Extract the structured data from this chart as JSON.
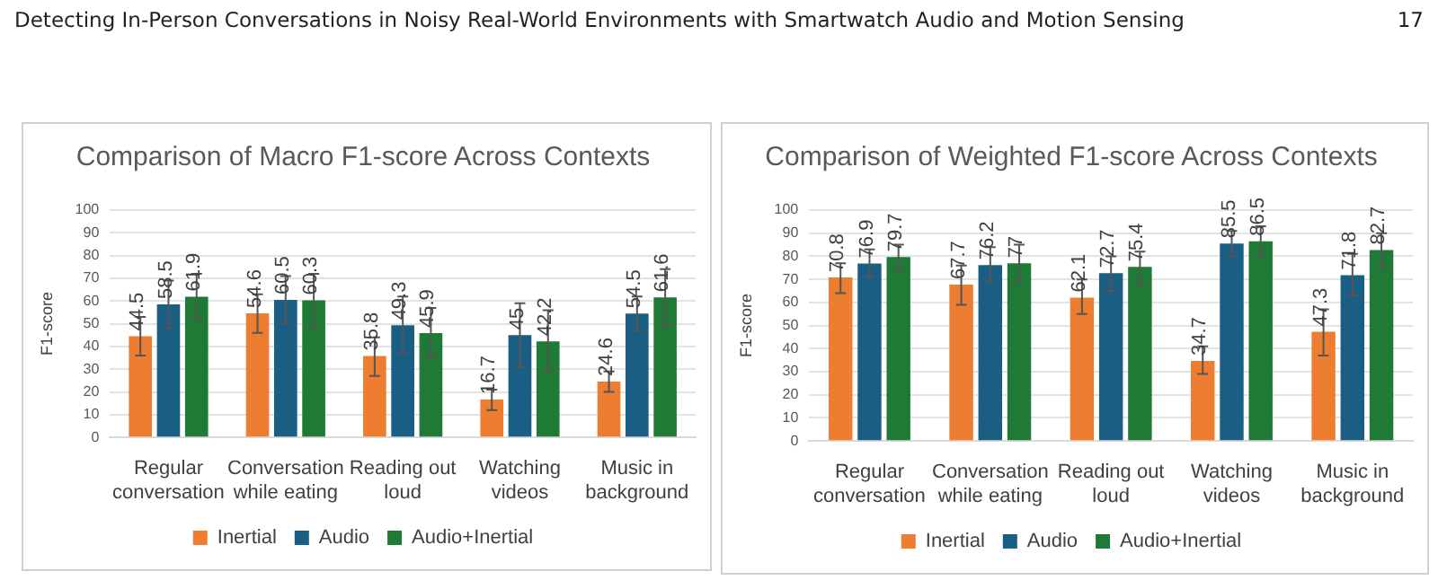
{
  "chart_data": [
    {
      "type": "bar",
      "title": "Comparison of Macro F1-score Across Contexts",
      "ylabel": "F1-score",
      "annotations": [
        "Detecting In-Person Conversations in Noisy Real-World Environments with Smartwatch Audio and Motion Sensing",
        "17"
      ],
      "categories": [
        "Regular conversation",
        "Conversation while eating",
        "Reading out loud",
        "Watching videos",
        "Music in background"
      ],
      "series": [
        {
          "name": "Inertial",
          "color": "#ed7d31",
          "values": [
            44.5,
            54.6,
            35.8,
            16.7,
            24.6
          ],
          "errors": [
            [
              36,
              53
            ],
            [
              46,
              63
            ],
            [
              27,
              44
            ],
            [
              12,
              21
            ],
            [
              20,
              29
            ]
          ]
        },
        {
          "name": "Audio",
          "color": "#1b5e84",
          "values": [
            58.5,
            60.5,
            49.3,
            45,
            54.5
          ],
          "errors": [
            [
              48,
              69
            ],
            [
              50,
              71
            ],
            [
              37,
              62
            ],
            [
              31,
              59
            ],
            [
              47,
              62
            ]
          ]
        },
        {
          "name": "Audio+Inertial",
          "color": "#1f7a35",
          "values": [
            61.9,
            60.3,
            45.9,
            42.2,
            61.6
          ],
          "errors": [
            [
              52,
              72
            ],
            [
              48,
              72
            ],
            [
              35,
              57
            ],
            [
              29,
              56
            ],
            [
              49,
              74
            ]
          ]
        }
      ],
      "ylim": [
        0,
        100
      ],
      "yticks": [
        0,
        10,
        20,
        30,
        40,
        50,
        60,
        70,
        80,
        90,
        100
      ],
      "grid": "y",
      "legend": "bottom",
      "data_labels": true
    },
    {
      "type": "bar",
      "title": "Comparison of Weighted F1-score Across Contexts",
      "ylabel": "F1-score",
      "categories": [
        "Regular conversation",
        "Conversation while eating",
        "Reading out loud",
        "Watching videos",
        "Music in background"
      ],
      "series": [
        {
          "name": "Inertial",
          "color": "#ed7d31",
          "values": [
            70.8,
            67.7,
            62.1,
            34.7,
            47.3
          ],
          "errors": [
            [
              64,
              77
            ],
            [
              59,
              76
            ],
            [
              55,
              70
            ],
            [
              29,
              41
            ],
            [
              37,
              57
            ]
          ]
        },
        {
          "name": "Audio",
          "color": "#1b5e84",
          "values": [
            76.9,
            76.2,
            72.7,
            85.5,
            71.8
          ],
          "errors": [
            [
              71,
              83
            ],
            [
              69,
              84
            ],
            [
              65,
              80
            ],
            [
              80,
              91
            ],
            [
              63,
              81
            ]
          ]
        },
        {
          "name": "Audio+Inertial",
          "color": "#1f7a35",
          "values": [
            79.7,
            77,
            75.4,
            86.5,
            82.7
          ],
          "errors": [
            [
              74,
              85
            ],
            [
              69,
              85
            ],
            [
              68,
              82
            ],
            [
              80,
              93
            ],
            [
              75,
              90
            ]
          ]
        }
      ],
      "ylim": [
        0,
        100
      ],
      "yticks": [
        0,
        10,
        20,
        30,
        40,
        50,
        60,
        70,
        80,
        90,
        100
      ],
      "grid": "y",
      "legend": "bottom",
      "data_labels": true
    }
  ]
}
